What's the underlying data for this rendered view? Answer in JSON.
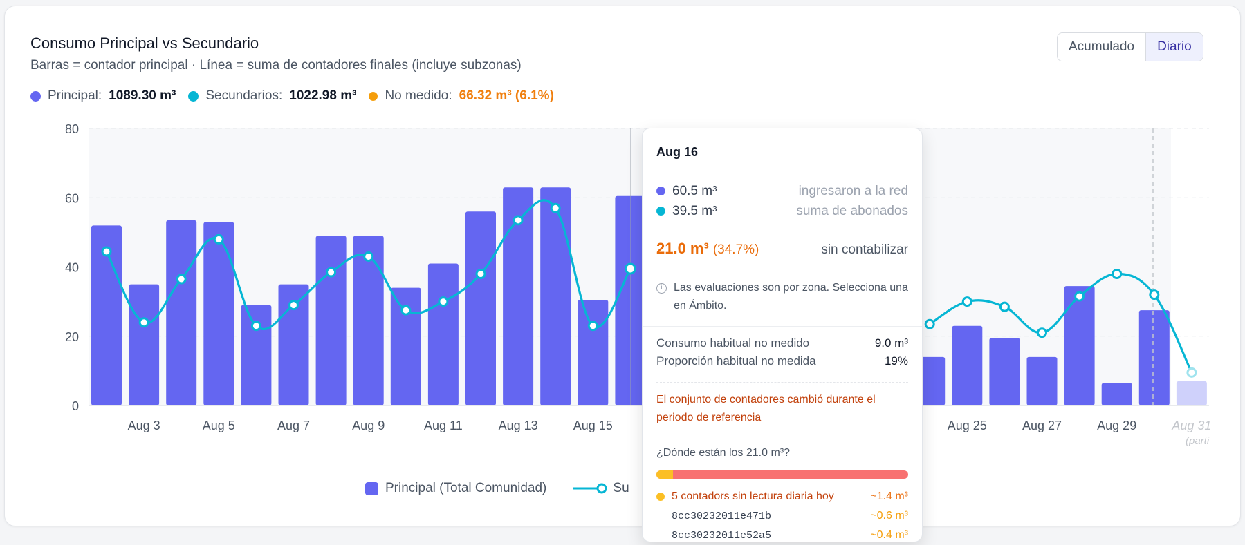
{
  "header": {
    "title": "Consumo Principal vs Secundario",
    "subtitle": "Barras = contador principal · Línea = suma de contadores finales (incluye subzonas)"
  },
  "toggle": {
    "options": [
      "Acumulado",
      "Diario"
    ],
    "selected": "Diario"
  },
  "summary": {
    "principal_label": "Principal:",
    "principal_value": "1089.30 m³",
    "secundarios_label": "Secundarios:",
    "secundarios_value": "1022.98 m³",
    "no_medido_label": "No medido:",
    "no_medido_value": "66.32 m³ (6.1%)"
  },
  "colors": {
    "principal": "#6466f1",
    "secundarios": "#06b6d4",
    "no_medido": "#f59e0b",
    "partial": "#cfd1fb"
  },
  "chart_data": {
    "type": "bar",
    "title": "Consumo Principal vs Secundario",
    "x": [
      2,
      3,
      4,
      5,
      6,
      7,
      8,
      9,
      10,
      11,
      12,
      13,
      14,
      15,
      16,
      17,
      18,
      19,
      20,
      21,
      22,
      23,
      24,
      25,
      26,
      27,
      28,
      29,
      30,
      31
    ],
    "xtick_labels": [
      "Aug 3",
      "Aug 5",
      "Aug 7",
      "Aug 9",
      "Aug 11",
      "Aug 13",
      "Aug 15",
      "Aug 25",
      "Aug 27",
      "Aug 29",
      "Aug 31"
    ],
    "xtick_positions": [
      3,
      5,
      7,
      9,
      11,
      13,
      15,
      25,
      27,
      29,
      31
    ],
    "ylim": [
      0,
      80
    ],
    "yticks": [
      0,
      20,
      40,
      60,
      80
    ],
    "series": [
      {
        "name": "Principal (Total Comunidad)",
        "type": "bar",
        "values": [
          52,
          35,
          53.5,
          53,
          29,
          35,
          49,
          49,
          34,
          41,
          56,
          63,
          63,
          30.5,
          60.5,
          null,
          null,
          null,
          null,
          null,
          null,
          null,
          14,
          23,
          19.5,
          14,
          34.5,
          6.5,
          27.5,
          7
        ]
      },
      {
        "name": "Su",
        "type": "line",
        "values": [
          44.5,
          24,
          36.5,
          48,
          23,
          29,
          38.5,
          43,
          27.5,
          30,
          38,
          53.5,
          57,
          23,
          39.5,
          null,
          null,
          null,
          null,
          null,
          null,
          null,
          23.5,
          30,
          28.5,
          21,
          31.5,
          38,
          32,
          9.5
        ]
      }
    ],
    "partial_label": "(parti",
    "grid": true
  },
  "legend_bottom": {
    "principal": "Principal (Total Comunidad)",
    "secundarios": "Su"
  },
  "tooltip": {
    "date": "Aug 16",
    "row1_value": "60.5 m³",
    "row1_label": "ingresaron a la red",
    "row2_value": "39.5 m³",
    "row2_label": "suma de abonados",
    "total_value": "21.0 m³",
    "total_pct": "(34.7%)",
    "total_label": "sin contabilizar",
    "info": "Las evaluaciones son por zona. Selecciona una en Ámbito.",
    "stat1_label": "Consumo habitual no medido",
    "stat1_value": "9.0 m³",
    "stat2_label": "Proporción habitual no medida",
    "stat2_value": "19%",
    "warning": "El conjunto de contadores cambió durante el periodo de referencia",
    "where_q": "¿Dónde están los 21.0 m³?",
    "where_fraction": 0.067,
    "missing_label": "5 contadors sin lectura diaria hoy",
    "missing_value": "~1.4 m³",
    "meter1_id": "8cc30232011e471b",
    "meter1_value": "~0.6 m³",
    "meter2_id": "8cc30232011e52a5",
    "meter2_value": "~0.4 m³"
  }
}
